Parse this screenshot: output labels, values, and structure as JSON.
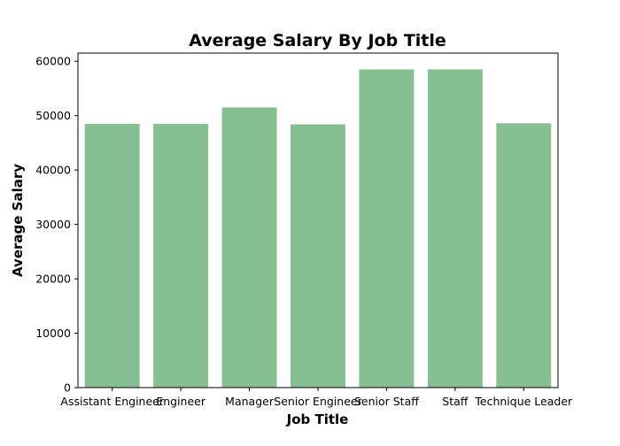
{
  "chart_data": {
    "type": "bar",
    "title": "Average Salary By Job Title",
    "xlabel": "Job Title",
    "ylabel": "Average Salary",
    "categories": [
      "Assistant Engineer",
      "Engineer",
      "Manager",
      "Senior Engineer",
      "Senior Staff",
      "Staff",
      "Technique Leader"
    ],
    "values": [
      48500,
      48500,
      51500,
      48400,
      58500,
      58500,
      48600
    ],
    "ylim": [
      0,
      61500
    ],
    "yticks": [
      0,
      10000,
      20000,
      30000,
      40000,
      50000,
      60000
    ],
    "ytick_labels": [
      "0",
      "10000",
      "20000",
      "30000",
      "40000",
      "50000",
      "60000"
    ],
    "bar_color": "#86bf91",
    "grid": false,
    "legend": false
  }
}
